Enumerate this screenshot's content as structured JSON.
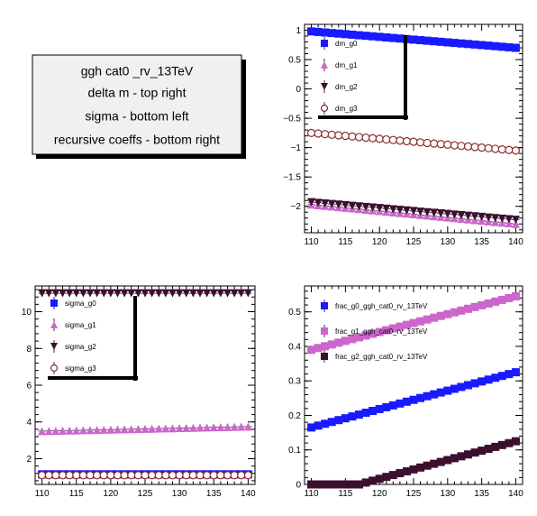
{
  "info_box": {
    "lines": [
      "ggh cat0 _rv_13TeV",
      "delta m -  top right",
      "sigma -  bottom left",
      "recursive coeffs -  bottom right"
    ]
  },
  "colors": {
    "blue": "#1a1aff",
    "violet": "#cc66cc",
    "darkplum": "#3d0f2e",
    "brown": "#8b2e2e"
  },
  "chart_data": [
    {
      "id": "dm",
      "type": "scatter",
      "title": "",
      "xlabel": "",
      "ylabel": "",
      "xlim": [
        109,
        141
      ],
      "ylim": [
        -2.45,
        1.1
      ],
      "xticks": [
        110,
        115,
        120,
        125,
        130,
        135,
        140
      ],
      "yticks": [
        -2,
        -1.5,
        -1,
        -0.5,
        0,
        0.5,
        1
      ],
      "ytick_labels": [
        "−2",
        "−1.5",
        "−1",
        "−0.5",
        "0",
        "0.5",
        "1"
      ],
      "legend": "top-left",
      "x": [
        110,
        111,
        112,
        113,
        114,
        115,
        116,
        117,
        118,
        119,
        120,
        121,
        122,
        123,
        124,
        125,
        126,
        127,
        128,
        129,
        130,
        131,
        132,
        133,
        134,
        135,
        136,
        137,
        138,
        139,
        140
      ],
      "series": [
        {
          "name": "dm_g0",
          "marker": "square",
          "color": "#1a1aff",
          "y_start": 0.98,
          "y_end": 0.7
        },
        {
          "name": "dm_g1",
          "marker": "triangle-up",
          "color": "#cc66cc",
          "y_start": -1.97,
          "y_end": -2.3
        },
        {
          "name": "dm_g2",
          "marker": "triangle-down",
          "color": "#3d0f2e",
          "y_start": -1.93,
          "y_end": -2.23
        },
        {
          "name": "dm_g3",
          "marker": "circle-open",
          "color": "#8b2e2e",
          "y_start": -0.75,
          "y_end": -1.05
        }
      ]
    },
    {
      "id": "sigma",
      "type": "scatter",
      "title": "",
      "xlabel": "",
      "ylabel": "",
      "xlim": [
        109,
        141
      ],
      "ylim": [
        0.6,
        11.4
      ],
      "xticks": [
        110,
        115,
        120,
        125,
        130,
        135,
        140
      ],
      "yticks": [
        2,
        4,
        6,
        8,
        10
      ],
      "ytick_labels": [
        "2",
        "4",
        "6",
        "8",
        "10"
      ],
      "legend": "top-left",
      "x": [
        110,
        111,
        112,
        113,
        114,
        115,
        116,
        117,
        118,
        119,
        120,
        121,
        122,
        123,
        124,
        125,
        126,
        127,
        128,
        129,
        130,
        131,
        132,
        133,
        134,
        135,
        136,
        137,
        138,
        139,
        140
      ],
      "series": [
        {
          "name": "sigma_g0",
          "marker": "square",
          "color": "#1a1aff",
          "y_start": 1.15,
          "y_end": 1.15
        },
        {
          "name": "sigma_g1",
          "marker": "triangle-up",
          "color": "#cc66cc",
          "y_start": 3.5,
          "y_end": 3.75
        },
        {
          "name": "sigma_g2",
          "marker": "triangle-down",
          "color": "#3d0f2e",
          "y_start": 11.0,
          "y_end": 11.0
        },
        {
          "name": "sigma_g3",
          "marker": "circle-open",
          "color": "#8b2e2e",
          "y_start": 1.1,
          "y_end": 1.1
        }
      ]
    },
    {
      "id": "frac",
      "type": "scatter",
      "title": "",
      "xlabel": "",
      "ylabel": "",
      "xlim": [
        109,
        141
      ],
      "ylim": [
        0,
        0.575
      ],
      "xticks": [
        110,
        115,
        120,
        125,
        130,
        135,
        140
      ],
      "yticks": [
        0,
        0.1,
        0.2,
        0.3,
        0.4,
        0.5
      ],
      "ytick_labels": [
        "0",
        "0.1",
        "0.2",
        "0.3",
        "0.4",
        "0.5"
      ],
      "legend": "top-left",
      "x": [
        110,
        111,
        112,
        113,
        114,
        115,
        116,
        117,
        118,
        119,
        120,
        121,
        122,
        123,
        124,
        125,
        126,
        127,
        128,
        129,
        130,
        131,
        132,
        133,
        134,
        135,
        136,
        137,
        138,
        139,
        140
      ],
      "series": [
        {
          "name": "frac_g0_ggh_cat0_rv_13TeV",
          "marker": "square",
          "color": "#1a1aff",
          "y_start": 0.165,
          "y_end": 0.325
        },
        {
          "name": "frac_g1_ggh_cat0_rv_13TeV",
          "marker": "square",
          "color": "#cc66cc",
          "y_start": 0.39,
          "y_end": 0.545
        },
        {
          "name": "frac_g2_ggh_cat0_rv_13TeV",
          "marker": "square",
          "color": "#3d0f2e",
          "y_start": 0.0,
          "y_end": 0.125,
          "flat_until": 117
        }
      ]
    }
  ]
}
